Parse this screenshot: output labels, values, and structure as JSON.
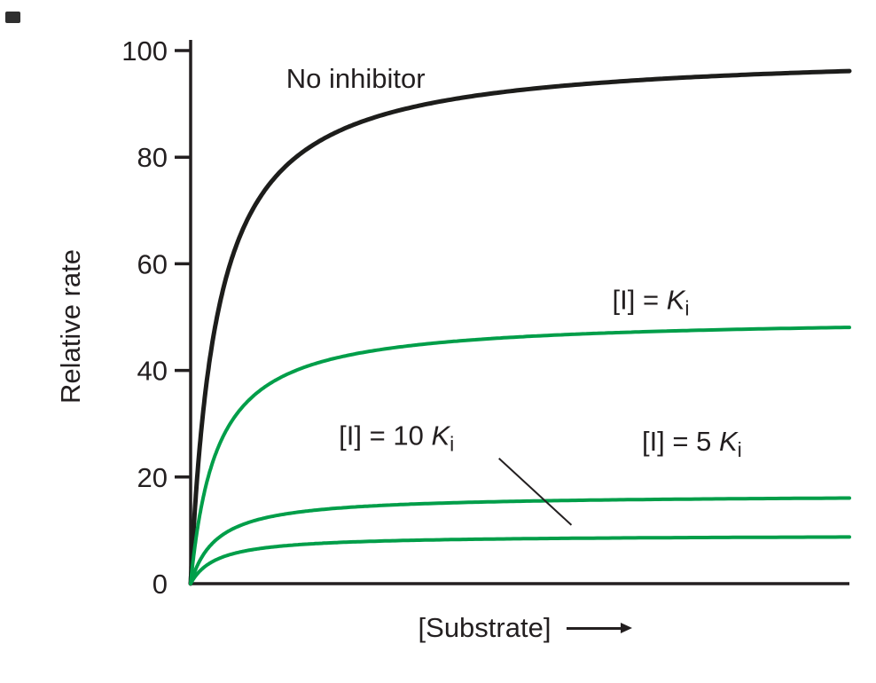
{
  "figure": {
    "background_color": "#ffffff",
    "corner_mark": {
      "present": true,
      "color": "#2f2f2f"
    }
  },
  "chart_data": {
    "type": "line",
    "curve_model": "michaelis_menten",
    "title": "",
    "xlabel": "[Substrate]",
    "xlabel_has_arrow": true,
    "ylabel": "Relative rate",
    "xlim": [
      0,
      1
    ],
    "ylim": [
      0,
      100
    ],
    "yticks": [
      0,
      20,
      40,
      60,
      80,
      100
    ],
    "xticks": [],
    "grid": false,
    "legend": "inline-labels",
    "axis_color": "#231f20",
    "text_color": "#231f20",
    "inhibitor_color": "#009e49",
    "series": [
      {
        "id": "no-inhibitor",
        "name": "No inhibitor",
        "vmax": 100,
        "km": 0.04,
        "approx_plateau": 96,
        "color": "#1d1d1b",
        "width": 5,
        "label": {
          "x": 0.145,
          "v": 93
        }
      },
      {
        "id": "i-equals-ki",
        "name": "[I] = K_i",
        "vmax": 50,
        "km": 0.04,
        "approx_plateau": 48,
        "color": "#009e49",
        "width": 4,
        "label": {
          "x": 0.64,
          "v": 51.5
        }
      },
      {
        "id": "i-equals-5ki",
        "name": "[I] = 5 K_i",
        "vmax": 16.7,
        "km": 0.04,
        "approx_plateau": 16,
        "color": "#009e49",
        "width": 4,
        "label": {
          "x": 0.685,
          "v": 25
        }
      },
      {
        "id": "i-equals-10ki",
        "name": "[I] = 10 K_i",
        "vmax": 9.1,
        "km": 0.04,
        "approx_plateau": 9,
        "color": "#009e49",
        "width": 4,
        "label": {
          "x": 0.225,
          "v": 26
        }
      }
    ],
    "annotations": [
      {
        "type": "callout-line",
        "from": {
          "x": 0.468,
          "v": 23.5
        },
        "to": {
          "x": 0.578,
          "v": 11
        },
        "color": "#231f20",
        "width": 2
      }
    ]
  }
}
